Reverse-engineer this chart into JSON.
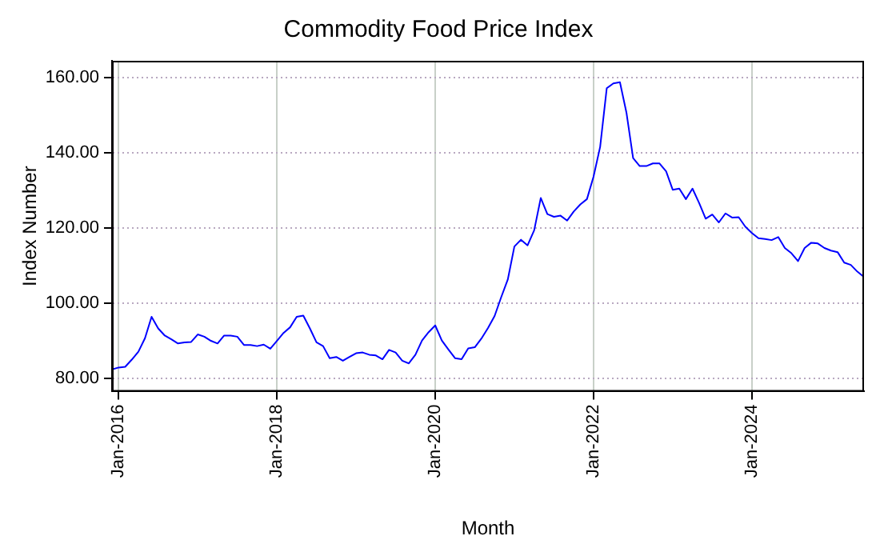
{
  "chart_data": {
    "type": "line",
    "title": "Commodity Food Price Index",
    "xlabel": "Month",
    "ylabel": "Index Number",
    "x": [
      "2015-12",
      "2016-01",
      "2016-02",
      "2016-03",
      "2016-04",
      "2016-05",
      "2016-06",
      "2016-07",
      "2016-08",
      "2016-09",
      "2016-10",
      "2016-11",
      "2016-12",
      "2017-01",
      "2017-02",
      "2017-03",
      "2017-04",
      "2017-05",
      "2017-06",
      "2017-07",
      "2017-08",
      "2017-09",
      "2017-10",
      "2017-11",
      "2017-12",
      "2018-01",
      "2018-02",
      "2018-03",
      "2018-04",
      "2018-05",
      "2018-06",
      "2018-07",
      "2018-08",
      "2018-09",
      "2018-10",
      "2018-11",
      "2018-12",
      "2019-01",
      "2019-02",
      "2019-03",
      "2019-04",
      "2019-05",
      "2019-06",
      "2019-07",
      "2019-08",
      "2019-09",
      "2019-10",
      "2019-11",
      "2019-12",
      "2020-01",
      "2020-02",
      "2020-03",
      "2020-04",
      "2020-05",
      "2020-06",
      "2020-07",
      "2020-08",
      "2020-09",
      "2020-10",
      "2020-11",
      "2020-12",
      "2021-01",
      "2021-02",
      "2021-03",
      "2021-04",
      "2021-05",
      "2021-06",
      "2021-07",
      "2021-08",
      "2021-09",
      "2021-10",
      "2021-11",
      "2021-12",
      "2022-01",
      "2022-02",
      "2022-03",
      "2022-04",
      "2022-05",
      "2022-06",
      "2022-07",
      "2022-08",
      "2022-09",
      "2022-10",
      "2022-11",
      "2022-12",
      "2023-01",
      "2023-02",
      "2023-03",
      "2023-04",
      "2023-05",
      "2023-06",
      "2023-07",
      "2023-08",
      "2023-09",
      "2023-10",
      "2023-11",
      "2023-12",
      "2024-01",
      "2024-02",
      "2024-03",
      "2024-04",
      "2024-05",
      "2024-06",
      "2024-07",
      "2024-08",
      "2024-09",
      "2024-10",
      "2024-11",
      "2024-12",
      "2025-01",
      "2025-02",
      "2025-03",
      "2025-04",
      "2025-05",
      "2025-06"
    ],
    "series": [
      {
        "color": "#0000ff",
        "values": [
          82.4,
          82.9,
          83.1,
          85,
          87.1,
          90.7,
          96.4,
          93.3,
          91.4,
          90.4,
          89.3,
          89.6,
          89.7,
          91.7,
          91.1,
          90,
          89.3,
          91.4,
          91.4,
          91.1,
          88.9,
          88.9,
          88.6,
          89,
          87.9,
          90,
          92.1,
          93.6,
          96.4,
          96.7,
          93.3,
          89.6,
          88.6,
          85.4,
          85.7,
          84.7,
          85.7,
          86.7,
          86.9,
          86.3,
          86.1,
          85.1,
          87.6,
          86.9,
          84.7,
          84,
          86.3,
          90.1,
          92.3,
          94.1,
          90.1,
          87.7,
          85.4,
          85.1,
          88,
          88.3,
          90.6,
          93.4,
          96.6,
          101.6,
          106.3,
          115.1,
          116.9,
          115.4,
          119.4,
          128,
          123.7,
          123,
          123.3,
          122,
          124.4,
          126.3,
          127.7,
          133.7,
          141.6,
          157.2,
          158.5,
          158.8,
          150.6,
          138.6,
          136.5,
          136.5,
          137.2,
          137.2,
          135.1,
          130.2,
          130.5,
          127.7,
          130.5,
          126.7,
          122.5,
          123.6,
          121.5,
          123.9,
          122.8,
          122.9,
          120.4,
          118.7,
          117.3,
          117.1,
          116.8,
          117.6,
          114.7,
          113.3,
          111.2,
          114.7,
          116.1,
          115.9,
          114.7,
          114,
          113.6,
          110.8,
          110.2,
          108.4,
          107
        ]
      }
    ],
    "xlim": [
      "2015-12",
      "2025-06"
    ],
    "xticks": [
      {
        "value": "2016-01",
        "label": "Jan-2016"
      },
      {
        "value": "2018-01",
        "label": "Jan-2018"
      },
      {
        "value": "2020-01",
        "label": "Jan-2020"
      },
      {
        "value": "2022-01",
        "label": "Jan-2022"
      },
      {
        "value": "2024-01",
        "label": "Jan-2024"
      }
    ],
    "ylim": [
      76.5,
      164.5
    ],
    "yticks": [
      {
        "value": 80,
        "label": "80.00"
      },
      {
        "value": 100,
        "label": "100.00"
      },
      {
        "value": 120,
        "label": "120.00"
      },
      {
        "value": 140,
        "label": "140.00"
      },
      {
        "value": 160,
        "label": "160.00"
      }
    ],
    "grid": true,
    "legend": false,
    "marker": "none",
    "line_style": "solid"
  }
}
